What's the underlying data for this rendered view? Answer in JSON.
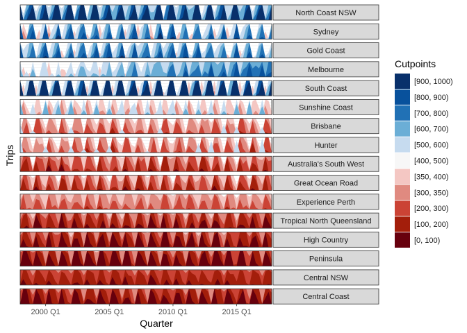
{
  "chart_data": {
    "type": "horizon",
    "xlabel": "Quarter",
    "ylabel": "Trips",
    "x_ticks": [
      "2000 Q1",
      "2005 Q1",
      "2010 Q1",
      "2015 Q1"
    ],
    "x_range": [
      1998.0,
      2017.75
    ],
    "legend_title": "Cutpoints",
    "cutpoints": [
      {
        "label": "[900, 1000)",
        "color": "#08306B"
      },
      {
        "label": "[800, 900)",
        "color": "#08519C"
      },
      {
        "label": "[700, 800)",
        "color": "#2171B5"
      },
      {
        "label": "[600, 700)",
        "color": "#6BAED6"
      },
      {
        "label": "[500, 600)",
        "color": "#C6DBEF"
      },
      {
        "label": "[400, 500)",
        "color": "#F7F7F7"
      },
      {
        "label": "[350, 400)",
        "color": "#F4C7C3"
      },
      {
        "label": "[300, 350)",
        "color": "#E08A80"
      },
      {
        "label": "[200, 300)",
        "color": "#CB4335"
      },
      {
        "label": "[100, 200)",
        "color": "#A31E0B"
      },
      {
        "label": "[0, 100)",
        "color": "#67000D"
      }
    ],
    "panels": [
      {
        "region": "North Coast NSW",
        "base": 585,
        "amp": 210,
        "noise": 40
      },
      {
        "region": "Sydney",
        "base": 470,
        "amp": 140,
        "noise": 45
      },
      {
        "region": "Gold Coast",
        "base": 490,
        "amp": 110,
        "noise": 35
      },
      {
        "region": "Melbourne",
        "base": 415,
        "amp": 60,
        "noise": 40,
        "trend": 150
      },
      {
        "region": "South Coast",
        "base": 560,
        "amp": 300,
        "noise": 40
      },
      {
        "region": "Sunshine Coast",
        "base": 400,
        "amp": 90,
        "noise": 30
      },
      {
        "region": "Brisbane",
        "base": 330,
        "amp": 90,
        "noise": 40
      },
      {
        "region": "Hunter",
        "base": 335,
        "amp": 95,
        "noise": 45
      },
      {
        "region": "Australia's South West",
        "base": 285,
        "amp": 85,
        "noise": 40
      },
      {
        "region": "Great Ocean Road",
        "base": 290,
        "amp": 85,
        "noise": 35
      },
      {
        "region": "Experience Perth",
        "base": 315,
        "amp": 50,
        "noise": 25
      },
      {
        "region": "Tropical North Queensland",
        "base": 245,
        "amp": 75,
        "noise": 30
      },
      {
        "region": "High Country",
        "base": 225,
        "amp": 85,
        "noise": 35
      },
      {
        "region": "Peninsula",
        "base": 205,
        "amp": 95,
        "noise": 35
      },
      {
        "region": "Central NSW",
        "base": 235,
        "amp": 45,
        "noise": 20
      },
      {
        "region": "Central Coast",
        "base": 220,
        "amp": 75,
        "noise": 30
      }
    ]
  }
}
